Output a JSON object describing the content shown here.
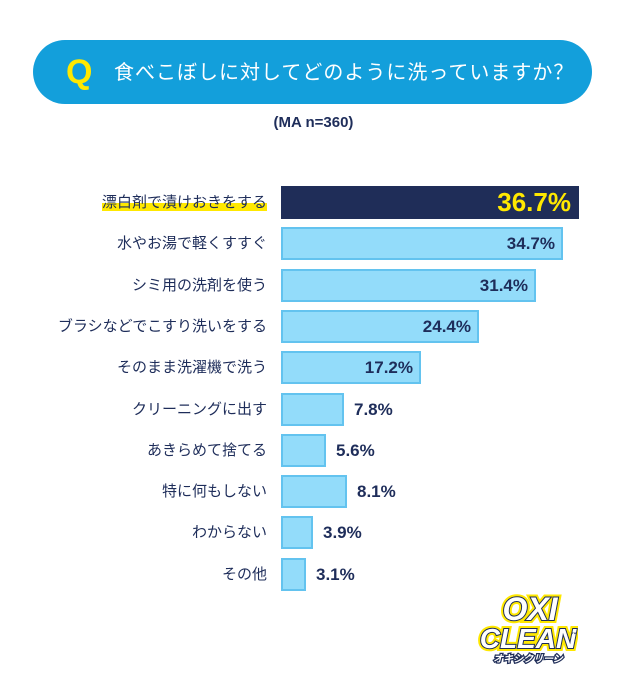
{
  "header": {
    "q_mark": "Q",
    "question": "食べこぼしに対してどのように洗っていますか？",
    "sample_note": "(MA n=360)"
  },
  "colors": {
    "pill": "#139fdb",
    "q_mark": "#ffe800",
    "bar_highlight": "#1f2d58",
    "bar_normal": "#93dcfa",
    "bar_border": "#63c3ef",
    "text": "#1e2d5a",
    "highlight_value": "#ffe800"
  },
  "chart_data": {
    "type": "bar",
    "orientation": "horizontal",
    "title": "食べこぼしに対してどのように洗っていますか？",
    "subtitle": "(MA n=360)",
    "xlabel": "",
    "ylabel": "",
    "categories": [
      "漂白剤で漬けおきをする",
      "水やお湯で軽くすすぐ",
      "シミ用の洗剤を使う",
      "ブラシなどでこすり洗いをする",
      "そのまま洗濯機で洗う",
      "クリーニングに出す",
      "あきらめて捨てる",
      "特に何もしない",
      "わからない",
      "その他"
    ],
    "values": [
      36.7,
      34.7,
      31.4,
      24.4,
      17.2,
      7.8,
      5.6,
      8.1,
      3.9,
      3.1
    ],
    "value_labels": [
      "36.7%",
      "34.7%",
      "31.4%",
      "24.4%",
      "17.2%",
      "7.8%",
      "5.6%",
      "8.1%",
      "3.9%",
      "3.1%"
    ],
    "unit": "%",
    "highlighted_index": 0,
    "grid": false,
    "legend": "none"
  },
  "logo": {
    "line1": "OXI",
    "line2": "CLEAN",
    "kana": "オキシクリーン",
    "tm": "™"
  }
}
